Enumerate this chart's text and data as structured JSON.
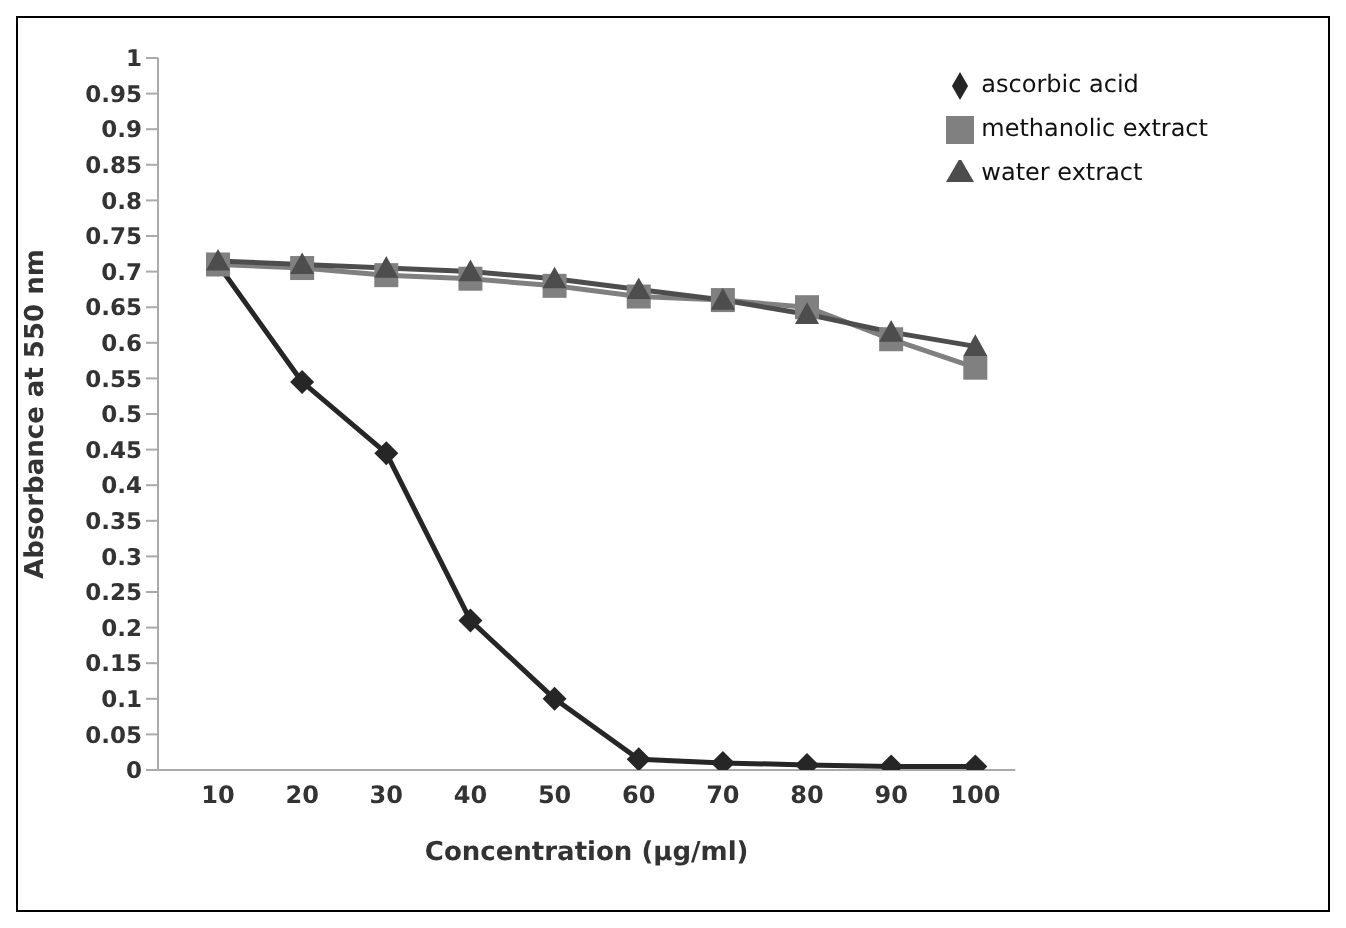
{
  "chart_data": {
    "type": "line",
    "xlabel": "Concentration (µg/ml)",
    "ylabel": "Absorbance at 550 nm",
    "categories": [
      "10",
      "20",
      "30",
      "40",
      "50",
      "60",
      "70",
      "80",
      "90",
      "100"
    ],
    "series": [
      {
        "name": "ascorbic acid",
        "color": "#262626",
        "marker": "diamond",
        "values": [
          0.71,
          0.545,
          0.445,
          0.21,
          0.1,
          0.015,
          0.01,
          0.007,
          0.005,
          0.005
        ]
      },
      {
        "name": "methanolic extract",
        "color": "#808080",
        "marker": "square",
        "values": [
          0.71,
          0.705,
          0.695,
          0.69,
          0.68,
          0.665,
          0.66,
          0.65,
          0.605,
          0.565
        ]
      },
      {
        "name": "water extract",
        "color": "#4d4d4d",
        "marker": "triangle",
        "values": [
          0.715,
          0.71,
          0.705,
          0.7,
          0.69,
          0.675,
          0.66,
          0.64,
          0.615,
          0.595
        ]
      }
    ],
    "ylim": [
      0,
      1
    ],
    "yticks": [
      0,
      0.05,
      0.1,
      0.15,
      0.2,
      0.25,
      0.3,
      0.35,
      0.4,
      0.45,
      0.5,
      0.55,
      0.6,
      0.65,
      0.7,
      0.75,
      0.8,
      0.85,
      0.9,
      0.95,
      1
    ],
    "grid": false,
    "legend": "top right",
    "line_style": "solid"
  }
}
